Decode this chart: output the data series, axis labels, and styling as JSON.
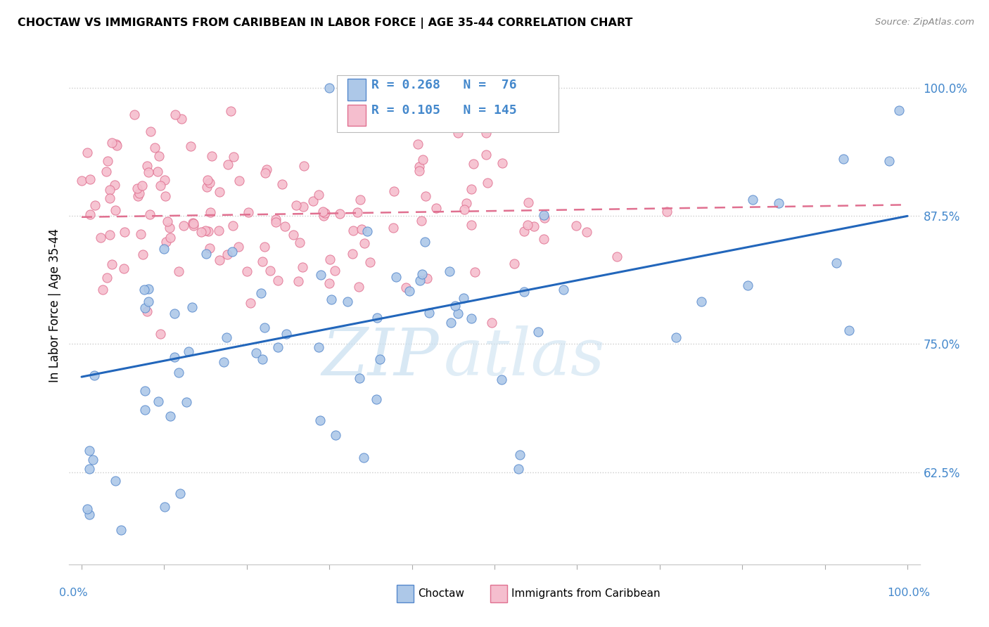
{
  "title": "CHOCTAW VS IMMIGRANTS FROM CARIBBEAN IN LABOR FORCE | AGE 35-44 CORRELATION CHART",
  "source": "Source: ZipAtlas.com",
  "ylabel": "In Labor Force | Age 35-44",
  "y_ticks": [
    0.625,
    0.75,
    0.875,
    1.0
  ],
  "y_tick_labels": [
    "62.5%",
    "75.0%",
    "87.5%",
    "100.0%"
  ],
  "x_range": [
    0.0,
    1.0
  ],
  "y_range": [
    0.535,
    1.04
  ],
  "choctaw_color": "#adc8e8",
  "choctaw_edge": "#5588cc",
  "caribbean_color": "#f5bece",
  "caribbean_edge": "#e07090",
  "trend1_color": "#2266bb",
  "trend2_color": "#e07090",
  "tick_color": "#4488cc",
  "watermark_color": "#ddeef8",
  "choctaw_trend_x0": 0.0,
  "choctaw_trend_y0": 0.718,
  "choctaw_trend_x1": 1.0,
  "choctaw_trend_y1": 0.875,
  "carib_trend_x0": 0.0,
  "carib_trend_y0": 0.874,
  "carib_trend_x1": 1.0,
  "carib_trend_y1": 0.886,
  "legend_r1_text": "R = 0.268",
  "legend_n1_text": "N =  76",
  "legend_r2_text": "R = 0.105",
  "legend_n2_text": "N = 145"
}
